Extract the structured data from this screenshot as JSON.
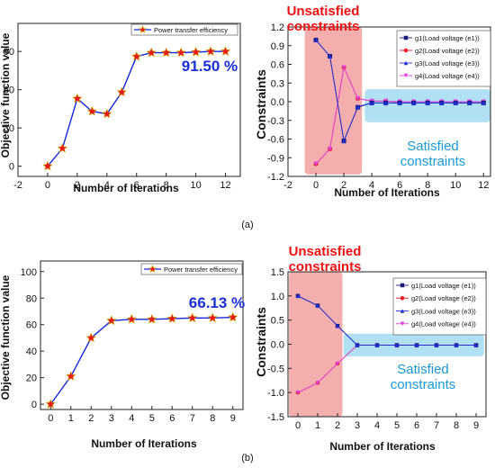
{
  "colors": {
    "efficiency_line": "#1428d8",
    "efficiency_marker": "#e81818",
    "efficiency_marker_edge": "#d4aa00",
    "g1": "#1a1a7a",
    "g2": "#ee1c24",
    "g3": "#1f2fd6",
    "g4": "#e040e0",
    "unsatisfied_box": "#f2a0a0",
    "satisfied_box": "#a8dcf2",
    "unsatisfied_text": "#ee1111",
    "satisfied_text": "#1a9ad6",
    "percent_text": "#1b2fd6"
  },
  "panel_labels": {
    "a": "(a)",
    "b": "(b)"
  },
  "chart_data": [
    {
      "id": "a-left",
      "type": "line",
      "xlabel": "Number of Iterations",
      "ylabel": "Objective function value",
      "xlim": [
        -2,
        13
      ],
      "ylim": [
        -8,
        112
      ],
      "xticks": [
        -2,
        0,
        2,
        4,
        6,
        8,
        10,
        12
      ],
      "yticks": [
        0,
        30,
        60,
        90
      ],
      "series": [
        {
          "name": "Power transfer efficiency",
          "x": [
            0,
            1,
            2,
            3,
            4,
            5,
            6,
            7,
            8,
            9,
            10,
            11,
            12
          ],
          "values": [
            0,
            14,
            53,
            43,
            41,
            58,
            86,
            89,
            89,
            89,
            89.5,
            90,
            90
          ]
        }
      ],
      "annotation": "91.50 %"
    },
    {
      "id": "a-right",
      "type": "line",
      "xlabel": "Number of Iterations",
      "ylabel": "Constraints",
      "xlim": [
        -2,
        12.5
      ],
      "ylim": [
        -1.2,
        1.2
      ],
      "xticks": [
        -2,
        0,
        2,
        4,
        6,
        8,
        10,
        12
      ],
      "yticks": [
        "-1.2",
        "-0.9",
        "-0.6",
        "-0.3",
        "0.0",
        "0.3",
        "0.6",
        "0.9",
        "1.2"
      ],
      "series": [
        {
          "name": "g1(Load voltage (e1))",
          "x": [
            0,
            1,
            2,
            3,
            4,
            5,
            6,
            7,
            8,
            9,
            10,
            11,
            12
          ],
          "values": [
            0.99,
            0.73,
            -0.63,
            -0.09,
            -0.02,
            -0.02,
            -0.02,
            -0.02,
            -0.02,
            -0.02,
            -0.02,
            -0.02,
            -0.02
          ]
        },
        {
          "name": "g2(Load voltage (e2))",
          "x": [
            0,
            1,
            2,
            3,
            4,
            5,
            6,
            7,
            8,
            9,
            10,
            11,
            12
          ],
          "values": [
            -1.0,
            -0.76,
            0.55,
            0.05,
            0.01,
            0.01,
            0.0,
            0.0,
            0.0,
            0.0,
            0.0,
            0.0,
            0.0
          ]
        },
        {
          "name": "g3(Load voltage (e3))",
          "x": [
            0,
            1,
            2,
            3,
            4,
            5,
            6,
            7,
            8,
            9,
            10,
            11,
            12
          ],
          "values": [
            0.99,
            0.73,
            -0.63,
            -0.08,
            -0.02,
            -0.02,
            -0.02,
            -0.02,
            -0.02,
            -0.02,
            -0.02,
            -0.02,
            -0.02
          ]
        },
        {
          "name": "g4(Load voltage (e4))",
          "x": [
            0,
            1,
            2,
            3,
            4,
            5,
            6,
            7,
            8,
            9,
            10,
            11,
            12
          ],
          "values": [
            -1.0,
            -0.76,
            0.55,
            0.05,
            0.01,
            0.01,
            0.0,
            0.0,
            0.0,
            0.0,
            0.0,
            0.0,
            0.0
          ]
        }
      ],
      "regions": {
        "unsatisfied": {
          "x": [
            -0.8,
            3.3
          ],
          "y": [
            -1.17,
            1.2
          ],
          "label_line1": "Unsatisfied",
          "label_line2": "constraints"
        },
        "satisfied": {
          "x": [
            3.5,
            12.5
          ],
          "y": [
            -0.33,
            0.2
          ],
          "label_line1": "Satisfied",
          "label_line2": "constraints"
        }
      }
    },
    {
      "id": "b-left",
      "type": "line",
      "xlabel": "Number of Iterations",
      "ylabel": "Objective function value",
      "xlim": [
        -0.5,
        9.5
      ],
      "ylim": [
        -4,
        108
      ],
      "xticks": [
        0,
        1,
        2,
        3,
        4,
        5,
        6,
        7,
        8,
        9
      ],
      "yticks": [
        0,
        20,
        40,
        60,
        80,
        100
      ],
      "series": [
        {
          "name": "Power transfer efficiency",
          "x": [
            0,
            1,
            2,
            3,
            4,
            5,
            6,
            7,
            8,
            9
          ],
          "values": [
            0,
            21,
            50,
            63,
            64,
            64,
            64.5,
            65,
            65,
            65.5
          ]
        }
      ],
      "annotation": "66.13 %"
    },
    {
      "id": "b-right",
      "type": "line",
      "xlabel": "Number of Iterations",
      "ylabel": "Constraints",
      "xlim": [
        -0.5,
        9.5
      ],
      "ylim": [
        -1.5,
        1.5
      ],
      "xticks": [
        0,
        1,
        2,
        3,
        4,
        5,
        6,
        7,
        8,
        9
      ],
      "yticks": [
        "-1.5",
        "-1.0",
        "-0.5",
        "0.0",
        "0.5",
        "1.0",
        "1.5"
      ],
      "series": [
        {
          "name": "g1(Load voltage (e1))",
          "x": [
            0,
            1,
            2,
            3,
            4,
            5,
            6,
            7,
            8,
            9
          ],
          "values": [
            1.0,
            0.8,
            0.38,
            -0.02,
            -0.02,
            -0.02,
            -0.02,
            -0.02,
            -0.02,
            -0.02
          ]
        },
        {
          "name": "g2(Load voltage (e2))",
          "x": [
            0,
            1,
            2,
            3,
            4,
            5,
            6,
            7,
            8,
            9
          ],
          "values": [
            -1.0,
            -0.8,
            -0.4,
            -0.02,
            -0.02,
            -0.02,
            -0.02,
            -0.02,
            -0.02,
            -0.02
          ]
        },
        {
          "name": "g3(Load voltage (e3))",
          "x": [
            0,
            1,
            2,
            3,
            4,
            5,
            6,
            7,
            8,
            9
          ],
          "values": [
            1.0,
            0.8,
            0.38,
            -0.02,
            -0.02,
            -0.02,
            -0.02,
            -0.02,
            -0.02,
            -0.02
          ]
        },
        {
          "name": "g4(Load voltage (e4))",
          "x": [
            0,
            1,
            2,
            3,
            4,
            5,
            6,
            7,
            8,
            9
          ],
          "values": [
            -1.0,
            -0.8,
            -0.4,
            -0.02,
            -0.02,
            -0.02,
            -0.02,
            -0.02,
            -0.02,
            -0.02
          ]
        }
      ],
      "regions": {
        "unsatisfied": {
          "x": [
            -0.45,
            2.25
          ],
          "y": [
            -1.5,
            1.5
          ],
          "label_line1": "Unsatisfied",
          "label_line2": "constraints"
        },
        "satisfied": {
          "x": [
            2.3,
            9.4
          ],
          "y": [
            -0.25,
            0.22
          ],
          "label_line1": "Satisfied",
          "label_line2": "constraints"
        }
      }
    }
  ]
}
